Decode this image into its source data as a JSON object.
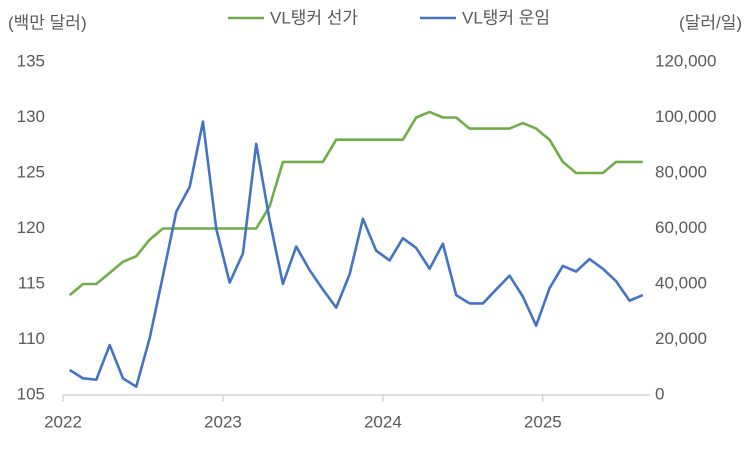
{
  "chart_data": {
    "type": "line",
    "ylabel": "(백만 달러)",
    "y2label": "(달러/일)",
    "x": [
      2022.042,
      2022.125,
      2022.208,
      2022.292,
      2022.375,
      2022.458,
      2022.542,
      2022.625,
      2022.708,
      2022.792,
      2022.875,
      2022.958,
      2023.042,
      2023.125,
      2023.208,
      2023.292,
      2023.375,
      2023.458,
      2023.542,
      2023.625,
      2023.708,
      2023.792,
      2023.875,
      2023.958,
      2024.042,
      2024.125,
      2024.208,
      2024.292,
      2024.375,
      2024.458,
      2024.542,
      2024.625,
      2024.708,
      2024.792,
      2024.875,
      2024.958,
      2025.042,
      2025.125,
      2025.208,
      2025.292,
      2025.375,
      2025.458,
      2025.542,
      2025.625
    ],
    "series": [
      {
        "name": "VL탱커 선가",
        "color": "#70ad47",
        "axis": "y",
        "values": [
          114,
          115,
          115,
          116,
          117,
          117.5,
          119,
          120,
          120,
          120,
          120,
          120,
          120,
          120,
          120,
          122,
          126,
          126,
          126,
          126,
          128,
          128,
          128,
          128,
          128,
          128,
          130,
          130.5,
          130,
          130,
          129,
          129,
          129,
          129,
          129.5,
          129,
          128,
          126,
          125,
          125,
          125,
          126,
          126,
          126
        ]
      },
      {
        "name": "VL탱커 운임",
        "color": "#4472c4",
        "axis": "y2",
        "values": [
          9000,
          6000,
          5500,
          18000,
          6000,
          3000,
          20500,
          43000,
          66000,
          75000,
          98500,
          60000,
          40500,
          51000,
          90500,
          63000,
          40000,
          53500,
          45000,
          38000,
          31500,
          43500,
          63500,
          52000,
          48500,
          56500,
          53000,
          45500,
          54500,
          36000,
          33000,
          33000,
          38000,
          43000,
          35500,
          25000,
          38500,
          46500,
          44500,
          49000,
          45500,
          41000,
          34000,
          36000
        ]
      }
    ],
    "xlim": [
      2022,
      2025.67
    ],
    "xticks": [
      2022,
      2023,
      2024,
      2025
    ],
    "ylim": [
      105,
      135
    ],
    "yticks": [
      105,
      110,
      115,
      120,
      125,
      130,
      135
    ],
    "y2lim": [
      0,
      120000
    ],
    "y2ticks": [
      0,
      {
        "value": 20000,
        "label": "20,000"
      },
      {
        "value": 40000,
        "label": "40,000"
      },
      {
        "value": 60000,
        "label": "60,000"
      },
      {
        "value": 80000,
        "label": "80,000"
      },
      {
        "value": 100000,
        "label": "100,000"
      },
      {
        "value": 120000,
        "label": "120,000"
      }
    ],
    "grid": false,
    "legend": "top"
  }
}
